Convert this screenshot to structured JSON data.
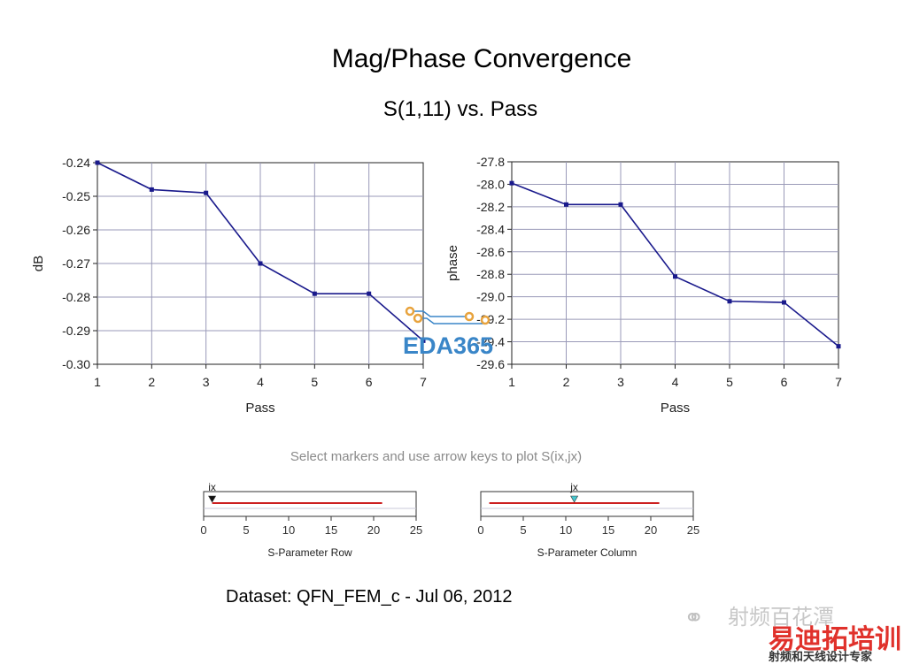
{
  "header": {
    "title": "Mag/Phase Convergence",
    "subtitle": "S(1,11) vs. Pass"
  },
  "chart_data": [
    {
      "type": "line",
      "title": "",
      "xlabel": "Pass",
      "ylabel": "dB",
      "x": [
        1,
        2,
        3,
        4,
        5,
        6,
        7
      ],
      "values": [
        -0.24,
        -0.248,
        -0.249,
        -0.27,
        -0.279,
        -0.279,
        -0.293
      ],
      "xlim": [
        1,
        7
      ],
      "ylim": [
        -0.3,
        -0.24
      ],
      "xticks": [
        "1",
        "2",
        "3",
        "4",
        "5",
        "6",
        "7"
      ],
      "yticks": [
        "-0.24",
        "-0.25",
        "-0.26",
        "-0.27",
        "-0.28",
        "-0.29",
        "-0.30"
      ],
      "grid": true,
      "line_color": "#1a1a8c"
    },
    {
      "type": "line",
      "title": "",
      "xlabel": "Pass",
      "ylabel": "phase",
      "x": [
        1,
        2,
        3,
        4,
        5,
        6,
        7
      ],
      "values": [
        -27.99,
        -28.18,
        -28.18,
        -28.82,
        -29.04,
        -29.05,
        -29.44
      ],
      "xlim": [
        1,
        7
      ],
      "ylim": [
        -29.6,
        -27.8
      ],
      "xticks": [
        "1",
        "2",
        "3",
        "4",
        "5",
        "6",
        "7"
      ],
      "yticks": [
        "-27.8",
        "-28.0",
        "-28.2",
        "-28.4",
        "-28.6",
        "-28.8",
        "-29.0",
        "-29.2",
        "-29.4",
        "-29.6"
      ],
      "grid": true,
      "line_color": "#1a1a8c"
    }
  ],
  "instruction": "Select markers and use arrow keys to plot S(ix,jx)",
  "sliders": [
    {
      "marker_label": "ix",
      "axis_label": "S-Parameter Row",
      "ticks": [
        "0",
        "5",
        "10",
        "15",
        "20",
        "25"
      ],
      "range": [
        0,
        25
      ],
      "line_start": 1,
      "line_end": 21,
      "marker_value": 1,
      "marker_color": "#111111"
    },
    {
      "marker_label": "jx",
      "axis_label": "S-Parameter Column",
      "ticks": [
        "0",
        "5",
        "10",
        "15",
        "20",
        "25"
      ],
      "range": [
        0,
        25
      ],
      "line_start": 1,
      "line_end": 21,
      "marker_value": 11,
      "marker_color": "#46c8d0"
    }
  ],
  "footer": {
    "dataset": "Dataset: QFN_FEM_c - Jul 06, 2012"
  },
  "watermark": {
    "main": "EDA365",
    "cn_name": "射频百花潭",
    "cn_red": "易迪拓培训",
    "cn_sub": "射频和天线设计专家"
  }
}
